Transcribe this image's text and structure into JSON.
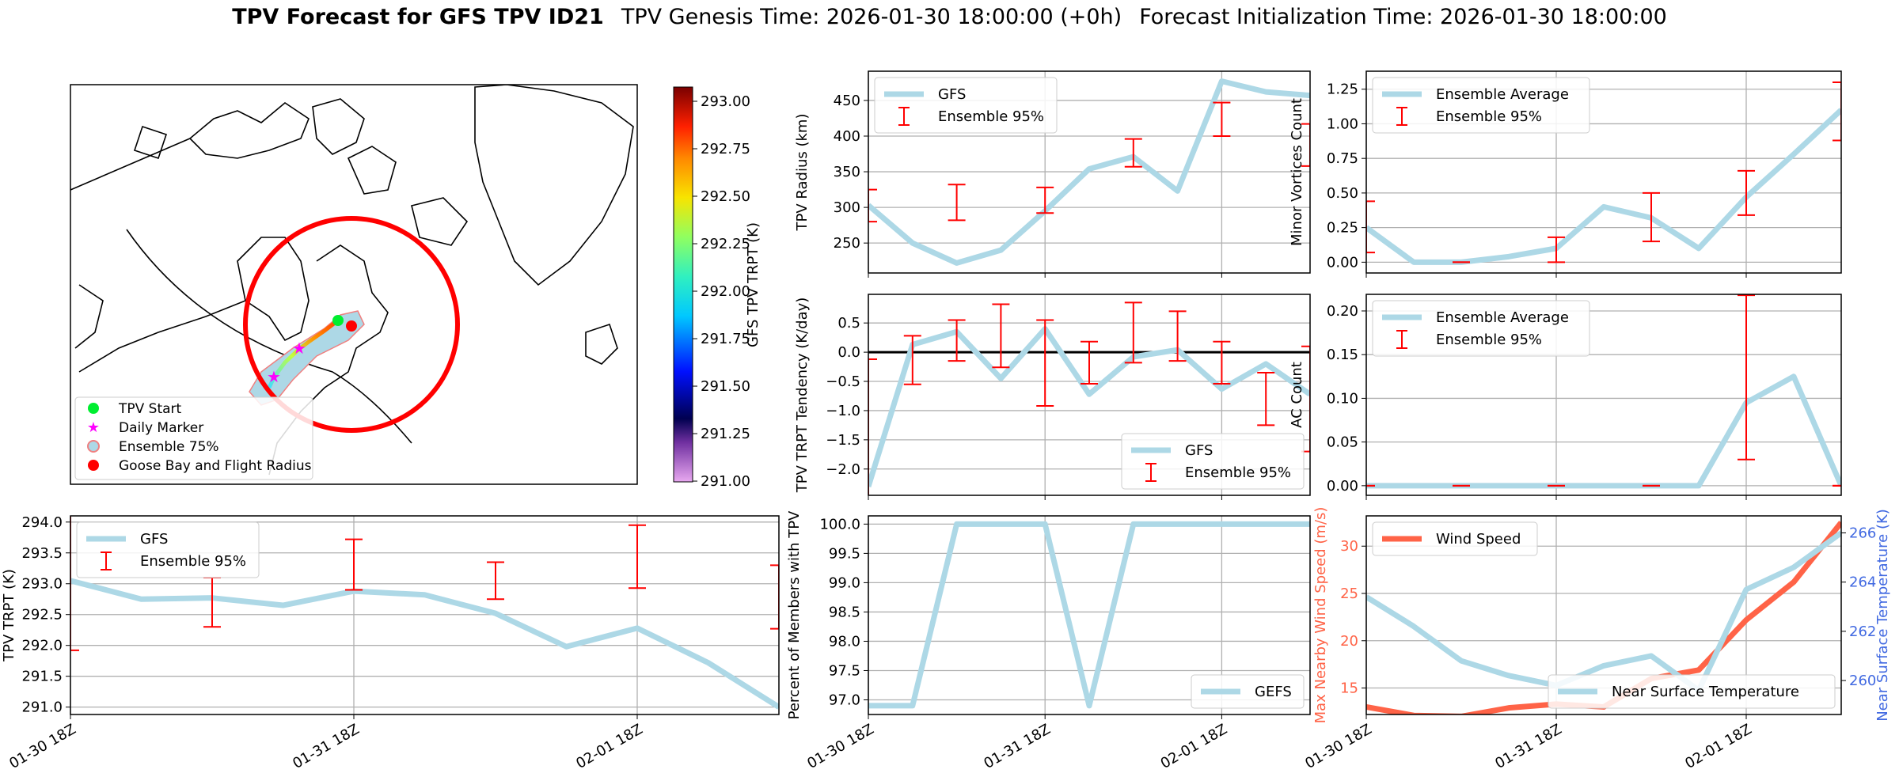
{
  "title": {
    "main": "TPV Forecast for GFS TPV ID21",
    "genesis": "TPV Genesis Time: 2026-01-30 18:00:00 (+0h)",
    "init": "Forecast Initialization Time: 2026-01-30 18:00:00"
  },
  "colors": {
    "gfs_line": "#add8e6",
    "errorbar": "#ff0000",
    "wind": "#ff6347",
    "temp_axis": "#4169e1"
  },
  "chart_data": [
    {
      "id": "map",
      "type": "map",
      "legend": [
        "TPV Start",
        "Daily Marker",
        "Ensemble 75%",
        "Goose Bay and Flight Radius"
      ],
      "colorbar": {
        "label": "GFS TPV TRPT (K)",
        "range": [
          290.996,
          293.075
        ],
        "ticks": [
          291.0,
          291.25,
          291.5,
          291.75,
          292.0,
          292.25,
          292.5,
          292.75,
          293.0
        ],
        "tick_labels": [
          "291.00",
          "291.25",
          "291.50",
          "291.75",
          "292.00",
          "292.25",
          "292.50",
          "292.75",
          "293.00"
        ]
      }
    },
    {
      "id": "radius",
      "type": "line",
      "ylabel": "TPV Radius (km)",
      "xlim": [
        0,
        10
      ],
      "ylim": [
        208,
        491
      ],
      "yticks": [
        250,
        300,
        350,
        400,
        450
      ],
      "ytick_labels": [
        "250",
        "300",
        "350",
        "400",
        "450"
      ],
      "xticks": [
        0,
        4,
        8
      ],
      "xtick_labels": [
        "01-30 18Z",
        "01-31 18Z",
        "02-01 18Z"
      ],
      "series": [
        {
          "name": "GFS",
          "x": [
            0,
            1,
            2,
            3,
            4,
            5,
            6,
            7,
            8,
            9,
            10
          ],
          "values": [
            303,
            250,
            222,
            240,
            295,
            354,
            371,
            323,
            477,
            462,
            457
          ]
        }
      ],
      "errorbars": {
        "name": "Ensemble 95%",
        "x": [
          0,
          2,
          4,
          6,
          8,
          10
        ],
        "low": [
          280,
          282,
          292,
          357,
          400,
          358
        ],
        "high": [
          325,
          332,
          328,
          396,
          447,
          417
        ]
      },
      "legend": {
        "loc": "upper left",
        "entries": [
          "GFS",
          "Ensemble 95%"
        ]
      }
    },
    {
      "id": "minor",
      "type": "line",
      "ylabel": "Minor Vortices Count",
      "xlim": [
        0,
        10
      ],
      "ylim": [
        -0.078,
        1.38
      ],
      "yticks": [
        0,
        0.25,
        0.5,
        0.75,
        1.0,
        1.25
      ],
      "ytick_labels": [
        "0.00",
        "0.25",
        "0.50",
        "0.75",
        "1.00",
        "1.25"
      ],
      "xticks": [
        0,
        4,
        8
      ],
      "xtick_labels": [
        "01-30 18Z",
        "01-31 18Z",
        "02-01 18Z"
      ],
      "series": [
        {
          "name": "Ensemble Average",
          "x": [
            0,
            1,
            2,
            3,
            4,
            5,
            6,
            7,
            8,
            9,
            10
          ],
          "values": [
            0.25,
            0.0,
            0.0,
            0.04,
            0.1,
            0.4,
            0.32,
            0.1,
            0.47,
            0.78,
            1.1
          ]
        }
      ],
      "errorbars": {
        "name": "Ensemble 95%",
        "x": [
          0,
          2,
          4,
          6,
          8,
          10
        ],
        "low": [
          0.07,
          0.0,
          0.0,
          0.15,
          0.34,
          0.88
        ],
        "high": [
          0.44,
          0.0,
          0.18,
          0.5,
          0.66,
          1.3
        ]
      },
      "legend": {
        "loc": "upper left",
        "entries": [
          "Ensemble Average",
          "Ensemble 95%"
        ]
      }
    },
    {
      "id": "tendency",
      "type": "line",
      "ylabel": "TPV TRPT Tendency (K/day)",
      "xlim": [
        0,
        10
      ],
      "ylim": [
        -2.45,
        0.99
      ],
      "hline": 0,
      "yticks": [
        -2.0,
        -1.5,
        -1.0,
        -0.5,
        0.0,
        0.5
      ],
      "ytick_labels": [
        "−2.0",
        "−1.5",
        "−1.0",
        "−0.5",
        "0.0",
        "0.5"
      ],
      "xticks": [
        0,
        4,
        8
      ],
      "xtick_labels": [
        "01-30 18Z",
        "01-31 18Z",
        "02-01 18Z"
      ],
      "series": [
        {
          "name": "GFS",
          "x": [
            0,
            1,
            2,
            3,
            4,
            5,
            6,
            7,
            8,
            9,
            10
          ],
          "values": [
            -2.3,
            0.13,
            0.35,
            -0.45,
            0.4,
            -0.72,
            -0.08,
            0.04,
            -0.63,
            -0.2,
            -0.72
          ]
        }
      ],
      "errorbars": {
        "name": "Ensemble 95%",
        "x": [
          0,
          1,
          2,
          3,
          4,
          5,
          6,
          7,
          8,
          9,
          10
        ],
        "low": [
          -2.6,
          -0.55,
          -0.15,
          -0.26,
          -0.92,
          -0.54,
          -0.18,
          -0.15,
          -0.54,
          -1.25,
          -1.7
        ],
        "high": [
          -0.12,
          0.28,
          0.55,
          0.82,
          0.55,
          0.18,
          0.85,
          0.7,
          0.18,
          -0.35,
          0.1
        ]
      },
      "legend": {
        "loc": "lower right",
        "entries": [
          "GFS",
          "Ensemble 95%"
        ]
      }
    },
    {
      "id": "ac",
      "type": "line",
      "ylabel": "AC Count",
      "xlim": [
        0,
        10
      ],
      "ylim": [
        -0.011,
        0.219
      ],
      "yticks": [
        0,
        0.05,
        0.1,
        0.15,
        0.2
      ],
      "ytick_labels": [
        "0.00",
        "0.05",
        "0.10",
        "0.15",
        "0.20"
      ],
      "xticks": [
        0,
        4,
        8
      ],
      "xtick_labels": [
        "01-30 18Z",
        "01-31 18Z",
        "02-01 18Z"
      ],
      "series": [
        {
          "name": "Ensemble Average",
          "x": [
            0,
            1,
            2,
            3,
            4,
            5,
            6,
            7,
            8,
            9,
            10
          ],
          "values": [
            0,
            0,
            0,
            0,
            0,
            0,
            0,
            0,
            0.095,
            0.125,
            0
          ]
        }
      ],
      "errorbars": {
        "name": "Ensemble 95%",
        "x": [
          0,
          2,
          4,
          6,
          8,
          10
        ],
        "low": [
          0,
          0,
          0,
          0,
          0.03,
          0
        ],
        "high": [
          0,
          0,
          0,
          0,
          0.218,
          0
        ]
      },
      "legend": {
        "loc": "upper left",
        "entries": [
          "Ensemble Average",
          "Ensemble 95%"
        ]
      }
    },
    {
      "id": "trpt",
      "type": "line",
      "ylabel": "TPV TRPT (K)",
      "xlim": [
        0,
        10
      ],
      "ylim": [
        290.88,
        294.1
      ],
      "yticks": [
        291.0,
        291.5,
        292.0,
        292.5,
        293.0,
        293.5,
        294.0
      ],
      "ytick_labels": [
        "291.0",
        "291.5",
        "292.0",
        "292.5",
        "293.0",
        "293.5",
        "294.0"
      ],
      "xticks": [
        0,
        4,
        8
      ],
      "xtick_labels": [
        "01-30 18Z",
        "01-31 18Z",
        "02-01 18Z"
      ],
      "series": [
        {
          "name": "GFS",
          "x": [
            0,
            1,
            2,
            3,
            4,
            5,
            6,
            7,
            8,
            9,
            10
          ],
          "values": [
            293.05,
            292.75,
            292.77,
            292.65,
            292.88,
            292.82,
            292.52,
            291.98,
            292.28,
            291.72,
            291.0
          ]
        }
      ],
      "errorbars": {
        "name": "Ensemble 95%",
        "x": [
          0,
          2,
          4,
          6,
          8,
          10
        ],
        "low": [
          291.92,
          292.3,
          292.9,
          292.75,
          292.93,
          292.27
        ],
        "high": [
          294.4,
          293.1,
          293.72,
          293.35,
          293.95,
          293.3
        ]
      },
      "legend": {
        "loc": "upper left",
        "entries": [
          "GFS",
          "Ensemble 95%"
        ]
      }
    },
    {
      "id": "percent",
      "type": "line",
      "ylabel": "Percent of Members with TPV",
      "xlim": [
        0,
        10
      ],
      "ylim": [
        96.75,
        100.14
      ],
      "yticks": [
        97.0,
        97.5,
        98.0,
        98.5,
        99.0,
        99.5,
        100.0
      ],
      "ytick_labels": [
        "97.0",
        "97.5",
        "98.0",
        "98.5",
        "99.0",
        "99.5",
        "100.0"
      ],
      "xticks": [
        0,
        4,
        8
      ],
      "xtick_labels": [
        "01-30 18Z",
        "01-31 18Z",
        "02-01 18Z"
      ],
      "series": [
        {
          "name": "GEFS",
          "x": [
            0,
            1,
            2,
            3,
            4,
            5,
            6,
            7,
            8,
            9,
            10
          ],
          "values": [
            96.9,
            96.9,
            100,
            100,
            100,
            96.9,
            100,
            100,
            100,
            100,
            100
          ]
        }
      ],
      "legend": {
        "loc": "lower right",
        "entries": [
          "GEFS"
        ]
      }
    },
    {
      "id": "wind",
      "type": "line",
      "ylabel": "Max Nearby Wind Speed (m/s)",
      "xlim": [
        0,
        10
      ],
      "ylim": [
        12.2,
        33.2
      ],
      "yticks": [
        15,
        20,
        25,
        30
      ],
      "ytick_labels": [
        "15",
        "20",
        "25",
        "30"
      ],
      "xticks": [
        0,
        4,
        8
      ],
      "xtick_labels": [
        "01-30 18Z",
        "01-31 18Z",
        "02-01 18Z"
      ],
      "series": [
        {
          "name": "Wind Speed",
          "x": [
            0,
            1,
            2,
            3,
            4,
            5,
            6,
            7,
            8,
            9,
            10
          ],
          "values": [
            13.0,
            12.1,
            12.0,
            12.9,
            13.3,
            13.0,
            16.0,
            16.9,
            22.2,
            26.2,
            32.5
          ]
        }
      ],
      "legend": {
        "loc": "upper left",
        "entries": [
          "Wind Speed"
        ]
      },
      "twin": {
        "ylabel": "Near Surface Temperature (K)",
        "ylim": [
          258.62,
          266.69
        ],
        "yticks": [
          260,
          262,
          264,
          266
        ],
        "ytick_labels": [
          "260",
          "262",
          "264",
          "266"
        ],
        "series": [
          {
            "name": "Near Surface Temperature",
            "x": [
              0,
              1,
              2,
              3,
              4,
              5,
              6,
              7,
              8,
              9,
              10
            ],
            "values": [
              263.4,
              262.2,
              260.8,
              260.2,
              259.8,
              260.6,
              261.0,
              259.6,
              263.7,
              264.6,
              266.0
            ]
          }
        ],
        "legend": {
          "loc": "lower right",
          "entries": [
            "Near Surface Temperature"
          ]
        }
      }
    }
  ]
}
